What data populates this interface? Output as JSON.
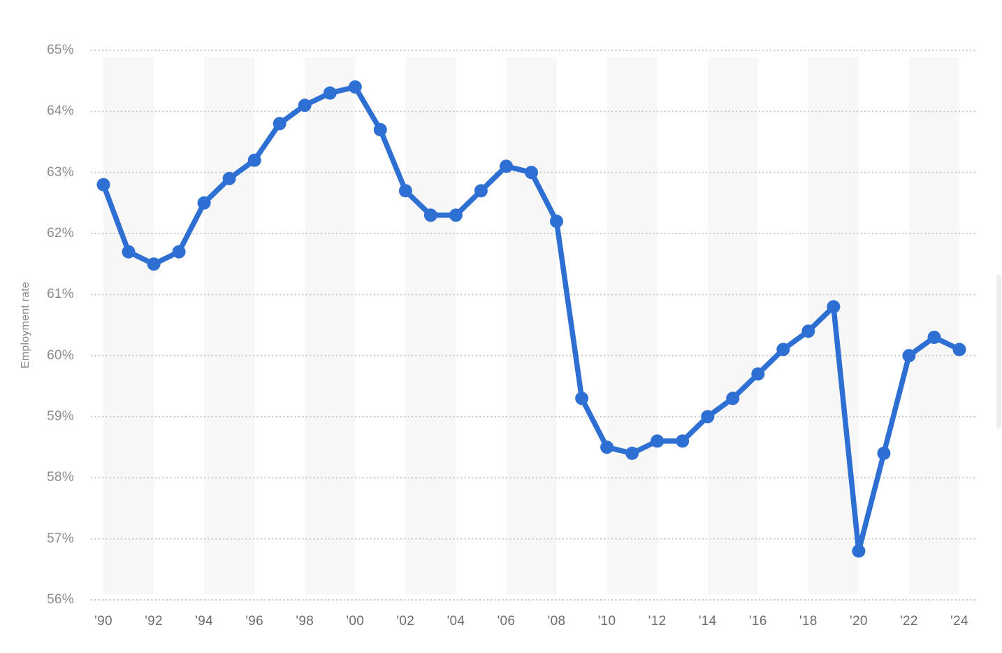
{
  "y_axis": {
    "label": "Employment rate",
    "tick_labels": [
      "65%",
      "64%",
      "63%",
      "62%",
      "61%",
      "60%",
      "59%",
      "58%",
      "57%",
      "56%"
    ]
  },
  "x_axis": {
    "tick_labels": [
      "'90",
      "'92",
      "'94",
      "'96",
      "'98",
      "'00",
      "'02",
      "'04",
      "'06",
      "'08",
      "'10",
      "'12",
      "'14",
      "'16",
      "'18",
      "'20",
      "'22",
      "'24"
    ]
  },
  "chart_data": {
    "type": "line",
    "title": "",
    "ylabel": "Employment rate",
    "xlabel": "",
    "x": [
      1990,
      1991,
      1992,
      1993,
      1994,
      1995,
      1996,
      1997,
      1998,
      1999,
      2000,
      2001,
      2002,
      2003,
      2004,
      2005,
      2006,
      2007,
      2008,
      2009,
      2010,
      2011,
      2012,
      2013,
      2014,
      2015,
      2016,
      2017,
      2018,
      2019,
      2020,
      2021,
      2022,
      2023,
      2024
    ],
    "values": [
      62.8,
      61.7,
      61.5,
      61.7,
      62.5,
      62.9,
      63.2,
      63.8,
      64.1,
      64.3,
      64.4,
      63.7,
      62.7,
      62.3,
      62.3,
      62.7,
      63.1,
      63.0,
      62.2,
      59.3,
      58.5,
      58.4,
      58.6,
      58.6,
      59.0,
      59.3,
      59.7,
      60.1,
      60.4,
      60.8,
      56.8,
      58.4,
      60.0,
      60.3,
      60.1
    ],
    "value_suffix": "%",
    "x_tick_labels": [
      "'90",
      "'92",
      "'94",
      "'96",
      "'98",
      "'00",
      "'02",
      "'04",
      "'06",
      "'08",
      "'10",
      "'12",
      "'14",
      "'16",
      "'18",
      "'20",
      "'22",
      "'24"
    ],
    "x_tick_every": 2,
    "ylim": [
      56,
      65
    ],
    "y_tick_step": 1,
    "y_tick_labels": [
      "65%",
      "64%",
      "63%",
      "62%",
      "61%",
      "60%",
      "59%",
      "58%",
      "57%",
      "56%"
    ],
    "legend": "none",
    "grid": "horizontal-dotted",
    "background_bands": "alternating 2-year vertical stripes starting at 1990",
    "colors": {
      "line": "#2e6fd3",
      "point": "#2e6fd3",
      "grid": "#c5c5c5",
      "band": "#f7f7f7",
      "y_tick_text": "#8c8c8c",
      "x_tick_text": "#6d6d6d",
      "axis_title_text": "#8a8a8a",
      "background": "#ffffff",
      "scrollbar": "#ededed"
    }
  }
}
